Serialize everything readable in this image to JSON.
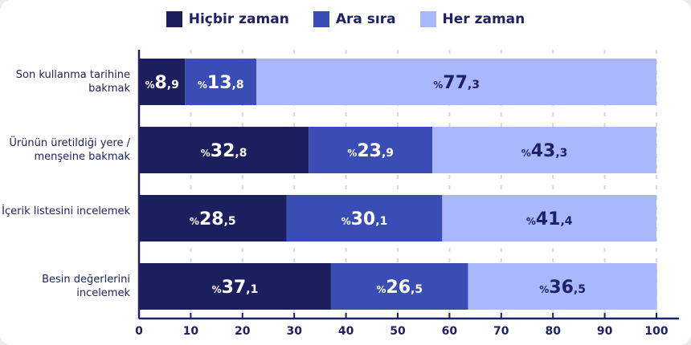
{
  "chart_data": {
    "type": "bar",
    "orientation": "horizontal",
    "stacked": true,
    "categories": [
      "Son kullanma tarihine bakmak",
      "Ürünün üretildiği yere / menşeine bakmak",
      "İçerik listesini incelemek",
      "Besin değerlerini incelemek"
    ],
    "series": [
      {
        "name": "Hiçbir zaman",
        "color": "#1b1f5e",
        "values": [
          8.9,
          32.8,
          28.5,
          37.1
        ],
        "labels": [
          "8,9",
          "32,8",
          "28,5",
          "37,1"
        ]
      },
      {
        "name": "Ara sıra",
        "color": "#3a4db5",
        "values": [
          13.8,
          23.9,
          30.1,
          26.5
        ],
        "labels": [
          "13,8",
          "23,9",
          "30,1",
          "26,5"
        ]
      },
      {
        "name": "Her zaman",
        "color": "#a9b8fc",
        "values": [
          77.3,
          43.3,
          41.4,
          36.5
        ],
        "labels": [
          "77,3",
          "43,3",
          "41,4",
          "36,5"
        ]
      }
    ],
    "label_prefix": "%",
    "xlim": [
      0,
      100
    ],
    "xticks": [
      "0",
      "10",
      "20",
      "30",
      "40",
      "50",
      "60",
      "70",
      "80",
      "90",
      "100"
    ],
    "grid": "vertical dashed",
    "legend": "top-center",
    "title": "",
    "xlabel": "",
    "ylabel": ""
  }
}
